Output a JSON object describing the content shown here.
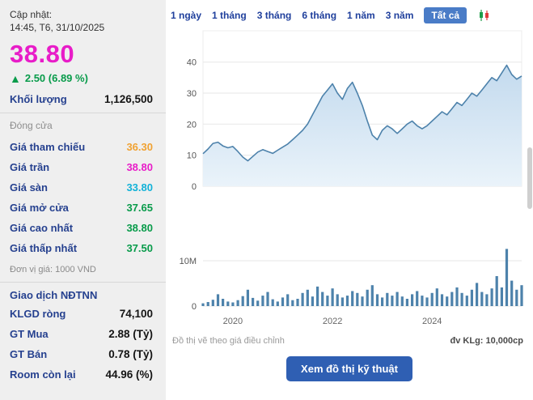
{
  "update": {
    "label": "Cập nhật:",
    "time": "14:45, T6, 31/10/2025"
  },
  "quote": {
    "price": "38.80",
    "change_arrow": "▲",
    "change_text": "2.50 (6.89 %)",
    "volume_label": "Khối lượng",
    "volume_value": "1,126,500",
    "session_label": "Đóng cửa"
  },
  "stats": [
    {
      "label": "Giá tham chiếu",
      "value": "36.30",
      "color": "#f0a232"
    },
    {
      "label": "Giá trần",
      "value": "38.80",
      "color": "#e81cc8"
    },
    {
      "label": "Giá sàn",
      "value": "33.80",
      "color": "#12b2d8"
    },
    {
      "label": "Giá mở cửa",
      "value": "37.65",
      "color": "#089b4a"
    },
    {
      "label": "Giá cao nhất",
      "value": "38.80",
      "color": "#089b4a"
    },
    {
      "label": "Giá thấp nhất",
      "value": "37.50",
      "color": "#089b4a"
    }
  ],
  "unit_note": "Đơn vị giá: 1000 VND",
  "foreign": {
    "title": "Giao dịch NĐTNN",
    "rows": [
      {
        "label": "KLGD ròng",
        "value": "74,100"
      },
      {
        "label": "GT Mua",
        "value": "2.88 (Tỷ)"
      },
      {
        "label": "GT Bán",
        "value": "0.78 (Tỷ)"
      },
      {
        "label": "Room còn lại",
        "value": "44.96 (%)"
      }
    ]
  },
  "tabs": [
    {
      "label": "1 ngày",
      "active": false
    },
    {
      "label": "1 tháng",
      "active": false
    },
    {
      "label": "3 tháng",
      "active": false
    },
    {
      "label": "6 tháng",
      "active": false
    },
    {
      "label": "1 năm",
      "active": false
    },
    {
      "label": "3 năm",
      "active": false
    },
    {
      "label": "Tất cả",
      "active": true
    }
  ],
  "chart_footer": {
    "note": "Đồ thị vẽ theo giá điều chỉnh",
    "unit": "đv KLg: 10,000cp"
  },
  "action_button": "Xem đồ thị kỹ thuật",
  "colors": {
    "price_magenta": "#e81cc8",
    "up_green": "#089b4a",
    "label_blue": "#26418f",
    "tab_active_bg": "#4a7cc7",
    "button_blue": "#2f5fb3",
    "chart_line": "#4d82ab",
    "volume_bar": "#4d82ab"
  },
  "chart_data": {
    "x_years": [
      2019.4,
      2019.5,
      2019.6,
      2019.7,
      2019.8,
      2019.9,
      2020.0,
      2020.1,
      2020.2,
      2020.3,
      2020.4,
      2020.5,
      2020.6,
      2020.7,
      2020.8,
      2020.9,
      2021.0,
      2021.1,
      2021.2,
      2021.3,
      2021.4,
      2021.5,
      2021.6,
      2021.7,
      2021.8,
      2021.9,
      2022.0,
      2022.1,
      2022.2,
      2022.3,
      2022.4,
      2022.5,
      2022.6,
      2022.7,
      2022.8,
      2022.9,
      2023.0,
      2023.1,
      2023.2,
      2023.3,
      2023.4,
      2023.5,
      2023.6,
      2023.7,
      2023.8,
      2023.9,
      2024.0,
      2024.1,
      2024.2,
      2024.3,
      2024.4,
      2024.5,
      2024.6,
      2024.7,
      2024.8,
      2024.9,
      2025.0,
      2025.1,
      2025.2,
      2025.3,
      2025.4,
      2025.5,
      2025.6,
      2025.7,
      2025.8
    ],
    "xticks": [
      2020,
      2022,
      2024
    ],
    "price": {
      "type": "area",
      "title": "Adjusted close price (1000 VND)",
      "ylim": [
        0,
        48
      ],
      "yticks": [
        0,
        10,
        20,
        30,
        40
      ],
      "line_color": "#4d82ab",
      "values": [
        10.5,
        12.0,
        13.8,
        14.2,
        13.0,
        12.4,
        12.8,
        11.2,
        9.4,
        8.2,
        9.6,
        11.0,
        11.8,
        11.2,
        10.6,
        11.6,
        12.6,
        13.6,
        15.0,
        16.5,
        18.0,
        20.0,
        23.0,
        26.0,
        29.0,
        31.0,
        33.0,
        30.0,
        28.0,
        31.5,
        33.5,
        30.0,
        26.0,
        21.0,
        16.5,
        15.0,
        18.0,
        19.5,
        18.5,
        17.0,
        18.5,
        20.0,
        21.0,
        19.5,
        18.5,
        19.5,
        21.0,
        22.5,
        24.0,
        23.0,
        25.0,
        27.0,
        26.0,
        28.0,
        30.0,
        29.0,
        31.0,
        33.0,
        35.0,
        34.0,
        36.5,
        39.0,
        36.0,
        34.5,
        35.5
      ]
    },
    "volume": {
      "type": "bar",
      "title": "Trading volume (millions of shares)",
      "unit": "M",
      "ylim": [
        0,
        20
      ],
      "yticks": [
        {
          "v": 0,
          "label": "0"
        },
        {
          "v": 10,
          "label": "10M"
        }
      ],
      "bar_color": "#4d82ab",
      "values": [
        0.6,
        0.9,
        1.4,
        2.6,
        1.6,
        1.0,
        0.8,
        1.3,
        2.2,
        3.6,
        1.8,
        1.2,
        2.3,
        3.1,
        1.5,
        1.0,
        1.9,
        2.6,
        1.3,
        1.6,
        2.9,
        3.6,
        2.1,
        4.3,
        3.1,
        2.3,
        3.9,
        2.6,
        1.9,
        2.3,
        3.3,
        2.9,
        2.1,
        3.6,
        4.6,
        2.6,
        1.9,
        2.9,
        2.3,
        3.1,
        2.1,
        1.6,
        2.6,
        3.3,
        2.3,
        1.9,
        2.9,
        3.9,
        2.6,
        2.1,
        3.1,
        4.1,
        2.9,
        2.3,
        3.6,
        5.1,
        3.1,
        2.6,
        3.9,
        6.6,
        4.1,
        12.6,
        5.6,
        3.6,
        4.6
      ]
    }
  }
}
